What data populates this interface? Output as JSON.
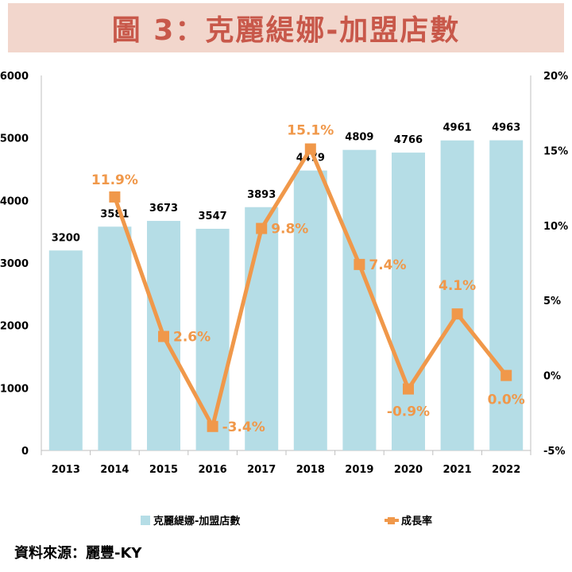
{
  "title": "圖 3：克麗緹娜-加盟店數",
  "source": "資料來源：麗豐-KY",
  "colors": {
    "title_bg": "#f2d6cc",
    "title_text": "#c8584a",
    "bar": "#b5dde6",
    "line": "#f0984a",
    "axis": "#000000"
  },
  "chart_data": {
    "type": "bar",
    "title": "",
    "categories": [
      "2013",
      "2014",
      "2015",
      "2016",
      "2017",
      "2018",
      "2019",
      "2020",
      "2021",
      "2022"
    ],
    "series": [
      {
        "name": "克麗緹娜-加盟店數",
        "type": "bar",
        "axis": "left",
        "values": [
          3200,
          3581,
          3673,
          3547,
          3893,
          4479,
          4809,
          4766,
          4961,
          4963
        ],
        "labels": [
          "3200",
          "3581",
          "3673",
          "3547",
          "3893",
          "4479",
          "4809",
          "4766",
          "4961",
          "4963"
        ]
      },
      {
        "name": "成長率",
        "type": "line",
        "axis": "right",
        "values": [
          null,
          11.9,
          2.6,
          -3.4,
          9.8,
          15.1,
          7.4,
          -0.9,
          4.1,
          0.0
        ],
        "labels": [
          "",
          "11.9%",
          "2.6%",
          "-3.4%",
          "9.8%",
          "15.1%",
          "7.4%",
          "-0.9%",
          "4.1%",
          "0.0%"
        ]
      }
    ],
    "y_left": {
      "min": 0,
      "max": 6000,
      "ticks": [
        "0",
        "1000",
        "2000",
        "3000",
        "4000",
        "5000",
        "6000"
      ]
    },
    "y_right": {
      "min": -5,
      "max": 20,
      "ticks": [
        "-5%",
        "0%",
        "5%",
        "10%",
        "15%",
        "20%"
      ]
    },
    "grid": false,
    "legend": "bottom"
  }
}
